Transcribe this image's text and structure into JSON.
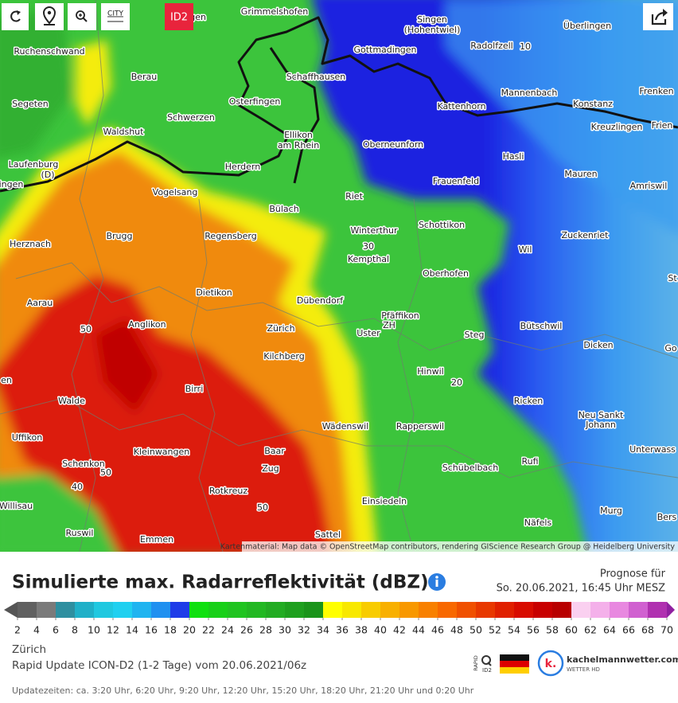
{
  "toolbar": {
    "city": "CITY",
    "badge": "ID2"
  },
  "map": {
    "places": [
      "rwangen",
      "Grimmelshofen",
      "Singen",
      "(Hohentwiel)",
      "Überlingen",
      "Ruchenschwand",
      "Gottmadingen",
      "Radolfzell",
      "10",
      "Berau",
      "Schaffhausen",
      "Mannenbach",
      "Frenken",
      "Segeten",
      "Osterfingen",
      "Kattenhorn",
      "Konstanz",
      "Schwerzen",
      "Kreuzlingen",
      "Frien",
      "Waldshut",
      "Ellikon",
      "am Rhein",
      "Oberneunforn",
      "Laufenburg",
      "(D)",
      "Herdern",
      "Hasli",
      "Mauren",
      "Frauenfeld",
      "ingen",
      "Amriswil",
      "Vogelsang",
      "Riet",
      "Bülach",
      "Schottikon",
      "Winterthur",
      "Zuckenriet",
      "Brugg",
      "Regensberg",
      "Herznach",
      "30",
      "Kempthal",
      "Wil",
      "Oberhofen",
      "St",
      "Dietikon",
      "Dübendorf",
      "Aarau",
      "Pfäffikon",
      "ZH",
      "50",
      "Anglikon",
      "Zürich",
      "Bütschwil",
      "Uster",
      "Steg",
      "Dicken",
      "Go",
      "Kilchberg",
      "Hinwil",
      "en",
      "20",
      "Birri",
      "Walde",
      "Ricken",
      "Neu Sankt",
      "Johann",
      "Wädenswil",
      "Rapperswil",
      "Uffikon",
      "Kleinwangen",
      "Baar",
      "Unterwass",
      "Schenkon",
      "Schübelbach",
      "Zug",
      "Rufi",
      "50",
      "40",
      "Rotkreuz",
      "Einsiedeln",
      "50",
      "Willisau",
      "Murg",
      "Bers",
      "Näfels",
      "Ruswil",
      "Sattel",
      "Emmen"
    ],
    "attribution": "Kartenmaterial: Map data © OpenStreetMap contributors, rendering GIScience Research Group @ Heidelberg University"
  },
  "legend": {
    "title": "Simulierte max. Radarreflektivität (dBZ)",
    "forecast_label": "Prognose für",
    "forecast_time": "So. 20.06.2021, 16:45 Uhr MESZ",
    "ticks": [
      2,
      4,
      6,
      8,
      10,
      12,
      14,
      16,
      18,
      20,
      22,
      24,
      26,
      28,
      30,
      32,
      34,
      36,
      38,
      40,
      42,
      44,
      46,
      48,
      50,
      52,
      54,
      56,
      58,
      60,
      62,
      64,
      66,
      68,
      70
    ],
    "colors": [
      "#555555",
      "#606060",
      "#7a7a7a",
      "#2e8fa0",
      "#20b0c8",
      "#20c8e0",
      "#20d0f0",
      "#20b4f0",
      "#2090f0",
      "#1e3ce8",
      "#10e010",
      "#18d018",
      "#20c420",
      "#22b822",
      "#22ac22",
      "#1ea01e",
      "#1a941a",
      "#ffff00",
      "#f8e800",
      "#f8cc00",
      "#f8b000",
      "#f89800",
      "#f88000",
      "#f86800",
      "#f05000",
      "#e83800",
      "#e02000",
      "#d80c00",
      "#c80000",
      "#b80000",
      "#fad0f0",
      "#f4b0ea",
      "#e888e0",
      "#d060d0",
      "#b030b0",
      "#9020a0"
    ]
  },
  "footer": {
    "location": "Zürich",
    "model": "Rapid Update ICON-D2 (1-2 Tage) vom 20.06.2021/06z",
    "logo_rapid": "RAPID",
    "logo_id": "ID2",
    "brand_k": "k.",
    "brand": "kachelmannwetter.com",
    "brand_sub": "WETTER HD",
    "updates": "Updatezeiten: ca. 3:20 Uhr, 6:20 Uhr, 9:20 Uhr, 12:20 Uhr, 15:20 Uhr, 18:20 Uhr, 21:20 Uhr und 0:20 Uhr"
  }
}
